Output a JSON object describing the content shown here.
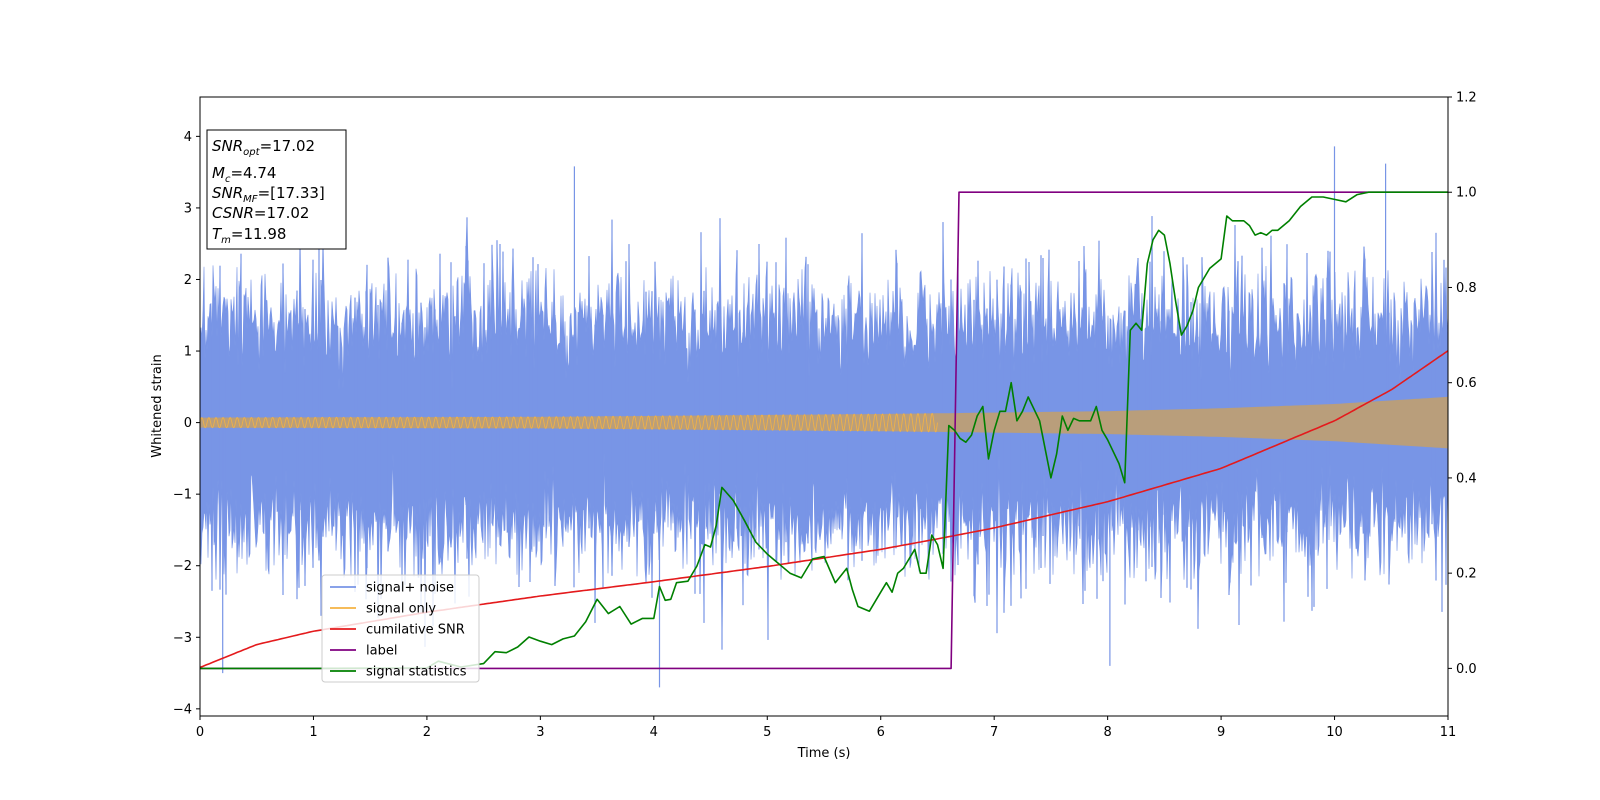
{
  "chart_data": {
    "type": "line",
    "xlabel": "Time (s)",
    "ylabel": "Whitened strain",
    "xlim": [
      0,
      11
    ],
    "ylim_left": [
      -4.1,
      4.55
    ],
    "ylim_right": [
      -0.1,
      1.2
    ],
    "xticks": [
      "0",
      "1",
      "2",
      "3",
      "4",
      "5",
      "6",
      "7",
      "8",
      "9",
      "10",
      "11"
    ],
    "yticks_left": [
      "−4",
      "−3",
      "−2",
      "−1",
      "0",
      "1",
      "2",
      "3",
      "4"
    ],
    "yticks_right": [
      "0.0",
      "0.2",
      "0.4",
      "0.6",
      "0.8",
      "1.0",
      "1.2"
    ],
    "grid": false,
    "legend_position": "lower-left",
    "info_box": {
      "snr_opt": {
        "base": "SNR",
        "sub": "opt",
        "value": "=17.02"
      },
      "mc": {
        "base": "M",
        "sub": "c",
        "value": "=4.74"
      },
      "snr_mf": {
        "base": "SNR",
        "sub": "MF",
        "value": "=[17.33]"
      },
      "csnr": {
        "base": "CSNR",
        "value": "=17.02"
      },
      "tm": {
        "base": "T",
        "sub": "m",
        "value": "=11.98"
      }
    },
    "series": [
      {
        "name": "signal+ noise",
        "color": "#7895e6",
        "axis": "left",
        "kind": "noise",
        "sigma": 0.8,
        "peak_max": 3.86,
        "peak_min": -3.7
      },
      {
        "name": "signal only",
        "color": "#f5b342",
        "fill_color": "#bd9e75",
        "axis": "left",
        "kind": "chirp",
        "envelope": {
          "x": [
            0,
            3,
            6,
            8,
            9,
            10,
            11
          ],
          "y": [
            0.07,
            0.08,
            0.12,
            0.16,
            0.2,
            0.26,
            0.36
          ]
        }
      },
      {
        "name": "cumilative SNR",
        "color": "#e41a1c",
        "axis": "right",
        "x": [
          0,
          0.5,
          1,
          2,
          3,
          4,
          5,
          6,
          6.5,
          7,
          8,
          9,
          10,
          10.5,
          11
        ],
        "y": [
          0.002,
          0.05,
          0.078,
          0.118,
          0.152,
          0.182,
          0.214,
          0.25,
          0.272,
          0.295,
          0.35,
          0.42,
          0.52,
          0.585,
          0.667
        ]
      },
      {
        "name": "label",
        "color": "#800080",
        "axis": "right",
        "x": [
          0,
          6.62,
          6.69,
          11
        ],
        "y": [
          0,
          0,
          1,
          1
        ]
      },
      {
        "name": "signal statistics",
        "color": "#008000",
        "axis": "right",
        "x": [
          0,
          1,
          2,
          2.1,
          2.3,
          2.5,
          2.6,
          2.7,
          2.8,
          2.9,
          3.0,
          3.1,
          3.2,
          3.3,
          3.4,
          3.5,
          3.6,
          3.7,
          3.8,
          3.9,
          4.0,
          4.05,
          4.1,
          4.15,
          4.2,
          4.3,
          4.38,
          4.45,
          4.5,
          4.55,
          4.6,
          4.7,
          4.8,
          4.9,
          5.0,
          5.1,
          5.2,
          5.3,
          5.4,
          5.5,
          5.6,
          5.7,
          5.75,
          5.8,
          5.9,
          6.0,
          6.05,
          6.1,
          6.15,
          6.2,
          6.3,
          6.35,
          6.4,
          6.45,
          6.5,
          6.55,
          6.6,
          6.65,
          6.7,
          6.75,
          6.8,
          6.85,
          6.9,
          6.95,
          7.0,
          7.05,
          7.1,
          7.15,
          7.2,
          7.25,
          7.3,
          7.4,
          7.5,
          7.55,
          7.6,
          7.65,
          7.7,
          7.75,
          7.8,
          7.85,
          7.9,
          7.95,
          8.0,
          8.1,
          8.15,
          8.2,
          8.25,
          8.3,
          8.35,
          8.4,
          8.45,
          8.5,
          8.55,
          8.6,
          8.65,
          8.7,
          8.75,
          8.8,
          8.9,
          9.0,
          9.05,
          9.1,
          9.2,
          9.25,
          9.3,
          9.35,
          9.4,
          9.45,
          9.5,
          9.6,
          9.7,
          9.8,
          9.9,
          10.0,
          10.1,
          10.2,
          10.3,
          10.5,
          10.7,
          11
        ],
        "y": [
          0,
          0.0,
          0.001,
          0.015,
          0.003,
          0.01,
          0.035,
          0.033,
          0.045,
          0.066,
          0.057,
          0.05,
          0.062,
          0.068,
          0.098,
          0.145,
          0.115,
          0.13,
          0.093,
          0.105,
          0.105,
          0.172,
          0.143,
          0.145,
          0.18,
          0.183,
          0.215,
          0.26,
          0.255,
          0.3,
          0.38,
          0.353,
          0.31,
          0.265,
          0.24,
          0.22,
          0.2,
          0.19,
          0.23,
          0.235,
          0.18,
          0.21,
          0.165,
          0.13,
          0.12,
          0.16,
          0.18,
          0.16,
          0.2,
          0.21,
          0.25,
          0.2,
          0.2,
          0.28,
          0.26,
          0.21,
          0.51,
          0.5,
          0.483,
          0.475,
          0.49,
          0.53,
          0.55,
          0.44,
          0.5,
          0.54,
          0.54,
          0.6,
          0.52,
          0.54,
          0.57,
          0.52,
          0.4,
          0.45,
          0.53,
          0.5,
          0.525,
          0.52,
          0.52,
          0.52,
          0.55,
          0.5,
          0.48,
          0.43,
          0.39,
          0.71,
          0.725,
          0.71,
          0.85,
          0.9,
          0.92,
          0.91,
          0.85,
          0.77,
          0.7,
          0.72,
          0.75,
          0.8,
          0.84,
          0.86,
          0.95,
          0.94,
          0.94,
          0.93,
          0.91,
          0.915,
          0.91,
          0.92,
          0.92,
          0.94,
          0.97,
          0.99,
          0.99,
          0.985,
          0.98,
          0.995,
          1.0,
          1.0,
          1.0,
          1.0
        ]
      }
    ]
  }
}
